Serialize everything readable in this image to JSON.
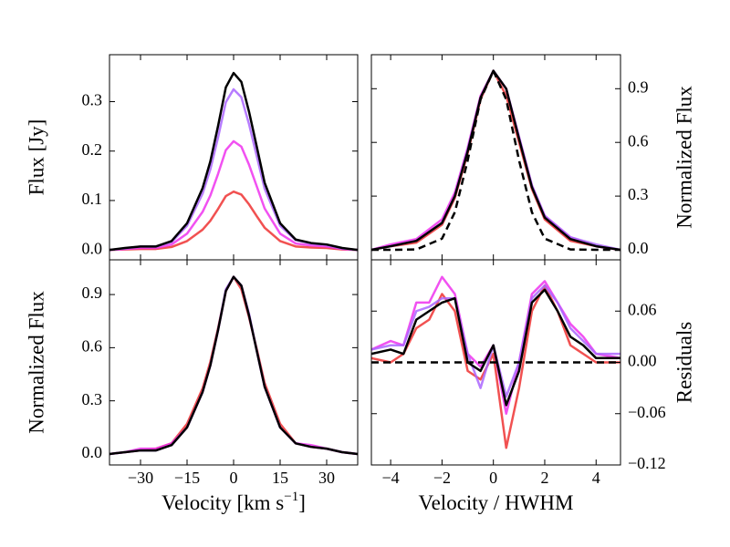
{
  "chart_data": [
    {
      "type": "line",
      "ylabel": "Flux [Jy]",
      "xlim": [
        -40,
        40
      ],
      "ylim": [
        -0.02,
        0.395
      ],
      "xticks": [
        -30,
        -15,
        0,
        15,
        30
      ],
      "xtick_labels": false,
      "yticks": [
        {
          "value": 0,
          "label": "0.0"
        },
        0.1,
        0.2,
        0.3
      ],
      "yaxis_side": "left",
      "x": [
        -40,
        -35,
        -30,
        -25,
        -20,
        -15,
        -10,
        -7.5,
        -5,
        -2.5,
        0,
        2.5,
        5,
        7.5,
        10,
        15,
        20,
        25,
        30,
        35,
        40
      ],
      "series": [
        {
          "color": "#ee3333",
          "values": [
            0,
            0.001,
            0.002,
            0.002,
            0.006,
            0.018,
            0.041,
            0.059,
            0.083,
            0.109,
            0.118,
            0.112,
            0.092,
            0.068,
            0.045,
            0.018,
            0.007,
            0.005,
            0.004,
            0.001,
            0
          ]
        },
        {
          "color": "#ee33ee",
          "values": [
            0,
            0.002,
            0.004,
            0.004,
            0.011,
            0.033,
            0.077,
            0.11,
            0.154,
            0.202,
            0.22,
            0.209,
            0.172,
            0.128,
            0.084,
            0.033,
            0.013,
            0.009,
            0.007,
            0.002,
            0
          ]
        },
        {
          "color": "#aa66ff",
          "values": [
            0,
            0.003,
            0.007,
            0.007,
            0.016,
            0.049,
            0.114,
            0.163,
            0.228,
            0.299,
            0.325,
            0.309,
            0.254,
            0.189,
            0.124,
            0.049,
            0.02,
            0.013,
            0.01,
            0.003,
            0
          ]
        },
        {
          "color": "#000000",
          "values": [
            0,
            0.004,
            0.007,
            0.007,
            0.018,
            0.054,
            0.125,
            0.179,
            0.251,
            0.329,
            0.358,
            0.34,
            0.279,
            0.208,
            0.136,
            0.054,
            0.021,
            0.014,
            0.011,
            0.004,
            0
          ]
        }
      ]
    },
    {
      "type": "line",
      "ylabel": "Normalized Flux",
      "xlim": [
        -4.75,
        4.95
      ],
      "ylim": [
        -0.056,
        1.09
      ],
      "xticks": [
        -4,
        -2,
        0,
        2,
        4
      ],
      "xtick_labels": false,
      "yticks": [
        {
          "value": 0,
          "label": "0.0"
        },
        0.3,
        0.6,
        0.9
      ],
      "yaxis_side": "right",
      "x": [
        -4.75,
        -4,
        -3,
        -2,
        -1.5,
        -1,
        -0.5,
        0,
        0.5,
        1,
        1.5,
        2,
        3,
        4,
        4.95
      ],
      "series": [
        {
          "color": "#ee3333",
          "values": [
            0,
            0.02,
            0.04,
            0.14,
            0.29,
            0.54,
            0.84,
            1.0,
            0.86,
            0.6,
            0.34,
            0.17,
            0.05,
            0.02,
            0
          ]
        },
        {
          "color": "#ee33ee",
          "values": [
            0,
            0.03,
            0.06,
            0.17,
            0.32,
            0.57,
            0.86,
            1.0,
            0.9,
            0.63,
            0.36,
            0.19,
            0.07,
            0.02,
            0
          ]
        },
        {
          "color": "#aa66ff",
          "values": [
            0,
            0.02,
            0.05,
            0.15,
            0.3,
            0.56,
            0.85,
            1.0,
            0.9,
            0.63,
            0.36,
            0.19,
            0.07,
            0.03,
            0
          ]
        },
        {
          "color": "#000000",
          "values": [
            0,
            0.02,
            0.05,
            0.15,
            0.3,
            0.55,
            0.85,
            1.0,
            0.9,
            0.62,
            0.35,
            0.18,
            0.06,
            0.02,
            0
          ]
        },
        {
          "color": "#000000",
          "linestyle": "dashed",
          "values": [
            0,
            0,
            0.002,
            0.0625,
            0.21,
            0.5,
            0.84,
            1.0,
            0.84,
            0.5,
            0.21,
            0.0625,
            0.002,
            0,
            0
          ]
        }
      ]
    },
    {
      "type": "line",
      "ylabel": "Normalized Flux",
      "xlabel": [
        "Velocity [km s",
        "−1",
        "]"
      ],
      "xlim": [
        -40,
        40
      ],
      "ylim": [
        -0.062,
        1.096
      ],
      "xticks": [
        {
          "value": -30,
          "label": "−30"
        },
        {
          "value": -15,
          "label": "−15"
        },
        0,
        15,
        30
      ],
      "xtick_labels": true,
      "yticks": [
        {
          "value": 0,
          "label": "0.0"
        },
        0.3,
        0.6,
        0.9
      ],
      "yaxis_side": "left",
      "x": [
        -40,
        -35,
        -30,
        -25,
        -20,
        -15,
        -10,
        -7.5,
        -5,
        -2.5,
        0,
        2.5,
        5,
        7.5,
        10,
        15,
        20,
        25,
        30,
        35,
        40
      ],
      "series": [
        {
          "color": "#ee3333",
          "values": [
            0,
            0.01,
            0.02,
            0.03,
            0.06,
            0.17,
            0.37,
            0.52,
            0.71,
            0.92,
            1.0,
            0.93,
            0.77,
            0.59,
            0.4,
            0.17,
            0.06,
            0.04,
            0.03,
            0.01,
            0
          ]
        },
        {
          "color": "#ee33ee",
          "values": [
            0,
            0.01,
            0.03,
            0.03,
            0.06,
            0.15,
            0.35,
            0.5,
            0.7,
            0.92,
            1.0,
            0.95,
            0.78,
            0.58,
            0.38,
            0.15,
            0.06,
            0.05,
            0.03,
            0.01,
            0
          ]
        },
        {
          "color": "#aa66ff",
          "values": [
            0,
            0.01,
            0.02,
            0.02,
            0.05,
            0.15,
            0.35,
            0.5,
            0.7,
            0.93,
            1.0,
            0.95,
            0.79,
            0.58,
            0.38,
            0.15,
            0.06,
            0.04,
            0.03,
            0.01,
            0
          ]
        },
        {
          "color": "#000000",
          "values": [
            0,
            0.01,
            0.02,
            0.02,
            0.05,
            0.15,
            0.35,
            0.5,
            0.7,
            0.92,
            1.0,
            0.95,
            0.78,
            0.58,
            0.38,
            0.15,
            0.06,
            0.04,
            0.03,
            0.01,
            0
          ]
        }
      ]
    },
    {
      "type": "line",
      "ylabel": "Residuals",
      "xlabel": [
        "Velocity / HWHM"
      ],
      "xlim": [
        -4.75,
        4.95
      ],
      "ylim": [
        -0.12,
        0.12
      ],
      "xticks": [
        {
          "value": -4,
          "label": "−4"
        },
        {
          "value": -2,
          "label": "−2"
        },
        0,
        2,
        4
      ],
      "xtick_labels": true,
      "yticks": [
        {
          "value": -0.12,
          "label": "−0.12"
        },
        {
          "value": -0.06,
          "label": "−0.06"
        },
        {
          "value": 0,
          "label": "0.00"
        },
        0.06
      ],
      "yaxis_side": "right",
      "x": [
        -4.75,
        -4,
        -3.5,
        -3,
        -2.5,
        -2,
        -1.5,
        -1,
        -0.5,
        0,
        0.5,
        1,
        1.5,
        2,
        2.5,
        3,
        3.5,
        4,
        4.95
      ],
      "series": [
        {
          "color": "#ee3333",
          "values": [
            0.005,
            0.0,
            0.01,
            0.04,
            0.05,
            0.08,
            0.06,
            -0.01,
            -0.02,
            0.01,
            -0.1,
            -0.03,
            0.06,
            0.09,
            0.06,
            0.02,
            0.01,
            0.0,
            0.0
          ]
        },
        {
          "color": "#ee33ee",
          "values": [
            0.015,
            0.025,
            0.02,
            0.07,
            0.07,
            0.1,
            0.08,
            0.01,
            -0.005,
            0.02,
            -0.06,
            0.0,
            0.08,
            0.095,
            0.07,
            0.045,
            0.03,
            0.01,
            0.005
          ]
        },
        {
          "color": "#aa66ff",
          "values": [
            0.015,
            0.02,
            0.02,
            0.06,
            0.065,
            0.075,
            0.075,
            0.01,
            -0.03,
            0.02,
            -0.04,
            0.0,
            0.075,
            0.09,
            0.07,
            0.04,
            0.025,
            0.01,
            0.01
          ]
        },
        {
          "color": "#000000",
          "values": [
            0.01,
            0.015,
            0.01,
            0.05,
            0.06,
            0.07,
            0.075,
            0.0,
            -0.01,
            0.02,
            -0.05,
            -0.01,
            0.07,
            0.085,
            0.06,
            0.03,
            0.02,
            0.005,
            0.005
          ]
        },
        {
          "color": "#000000",
          "linestyle": "dashed",
          "values": [
            0,
            0,
            0,
            0,
            0,
            0,
            0,
            0,
            0,
            0,
            0,
            0,
            0,
            0,
            0,
            0,
            0,
            0,
            0
          ]
        }
      ]
    }
  ]
}
